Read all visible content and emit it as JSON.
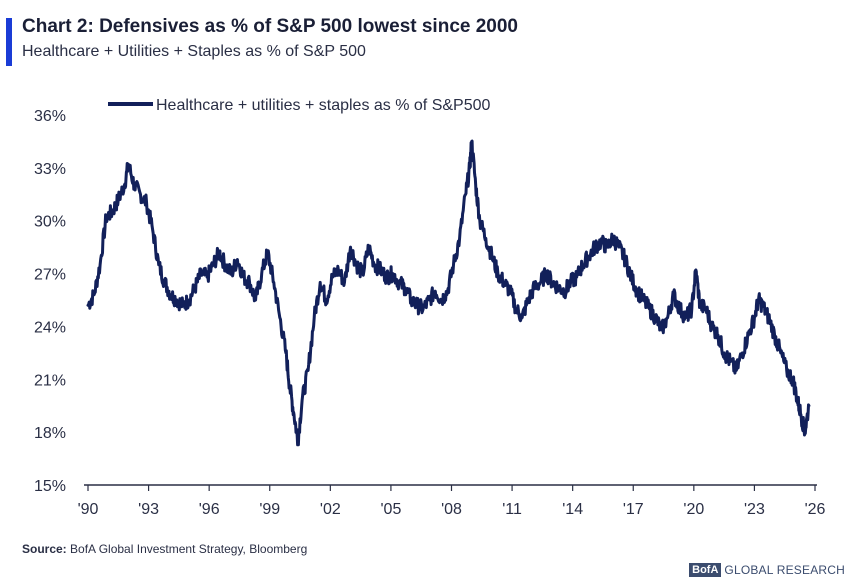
{
  "header": {
    "title": "Chart 2: Defensives as % of S&P 500 lowest since 2000",
    "subtitle": "Healthcare + Utilities + Staples as % of S&P 500"
  },
  "footer": {
    "source_label": "Source:",
    "source_text": " BofA Global Investment Strategy, Bloomberg",
    "brand_logo": "BofA",
    "brand_text": "GLOBAL RESEARCH"
  },
  "colors": {
    "series": "#12205a",
    "accent": "#1a3cd6",
    "axis": "#2a2f45"
  },
  "chart_data": {
    "type": "line",
    "title": "Chart 2: Defensives as % of S&P 500 lowest since 2000",
    "subtitle": "Healthcare + Utilities + Staples as % of S&P 500",
    "xlabel": "",
    "ylabel": "",
    "xlim": [
      1990,
      2026
    ],
    "ylim": [
      15,
      36
    ],
    "x_ticks": [
      {
        "value": 1990,
        "label": "'90"
      },
      {
        "value": 1993,
        "label": "'93"
      },
      {
        "value": 1996,
        "label": "'96"
      },
      {
        "value": 1999,
        "label": "'99"
      },
      {
        "value": 2002,
        "label": "'02"
      },
      {
        "value": 2005,
        "label": "'05"
      },
      {
        "value": 2008,
        "label": "'08"
      },
      {
        "value": 2011,
        "label": "'11"
      },
      {
        "value": 2014,
        "label": "'14"
      },
      {
        "value": 2017,
        "label": "'17"
      },
      {
        "value": 2020,
        "label": "'20"
      },
      {
        "value": 2023,
        "label": "'23"
      },
      {
        "value": 2026,
        "label": "'26"
      }
    ],
    "y_ticks": [
      {
        "value": 15,
        "label": "15%"
      },
      {
        "value": 18,
        "label": "18%"
      },
      {
        "value": 21,
        "label": "21%"
      },
      {
        "value": 24,
        "label": "24%"
      },
      {
        "value": 27,
        "label": "27%"
      },
      {
        "value": 30,
        "label": "30%"
      },
      {
        "value": 33,
        "label": "33%"
      },
      {
        "value": 36,
        "label": "36%"
      }
    ],
    "grid": false,
    "legend_position": "top",
    "series": [
      {
        "name": "Healthcare + utilities + staples as % of S&P500",
        "x": [
          1990.0,
          1990.3,
          1990.6,
          1990.9,
          1991.2,
          1991.5,
          1991.8,
          1992.0,
          1992.3,
          1992.6,
          1992.9,
          1993.2,
          1993.5,
          1993.8,
          1994.1,
          1994.4,
          1994.7,
          1995.0,
          1995.3,
          1995.6,
          1995.9,
          1996.2,
          1996.5,
          1996.8,
          1997.1,
          1997.4,
          1997.7,
          1998.0,
          1998.3,
          1998.6,
          1998.9,
          1999.2,
          1999.5,
          1999.8,
          2000.0,
          2000.2,
          2000.4,
          2000.6,
          2000.9,
          2001.2,
          2001.5,
          2001.8,
          2002.1,
          2002.4,
          2002.7,
          2003.0,
          2003.3,
          2003.6,
          2003.9,
          2004.2,
          2004.5,
          2004.8,
          2005.1,
          2005.4,
          2005.7,
          2006.0,
          2006.3,
          2006.6,
          2006.9,
          2007.2,
          2007.5,
          2007.8,
          2008.1,
          2008.4,
          2008.7,
          2008.9,
          2009.0,
          2009.2,
          2009.4,
          2009.7,
          2010.0,
          2010.3,
          2010.6,
          2010.9,
          2011.2,
          2011.5,
          2011.8,
          2012.1,
          2012.4,
          2012.7,
          2013.0,
          2013.3,
          2013.6,
          2013.9,
          2014.2,
          2014.5,
          2014.8,
          2015.1,
          2015.4,
          2015.7,
          2016.0,
          2016.3,
          2016.6,
          2016.9,
          2017.2,
          2017.5,
          2017.8,
          2018.1,
          2018.4,
          2018.7,
          2019.0,
          2019.3,
          2019.6,
          2019.9,
          2020.1,
          2020.3,
          2020.6,
          2020.9,
          2021.2,
          2021.5,
          2021.8,
          2022.1,
          2022.4,
          2022.7,
          2023.0,
          2023.2,
          2023.4,
          2023.7,
          2024.0,
          2024.3,
          2024.6,
          2024.9,
          2025.1,
          2025.3,
          2025.5,
          2025.7
        ],
        "values": [
          25.2,
          25.8,
          27.5,
          30.2,
          30.5,
          31.2,
          32.0,
          33.2,
          32.0,
          31.5,
          31.0,
          29.5,
          27.5,
          26.5,
          25.8,
          25.5,
          25.2,
          25.5,
          26.2,
          27.0,
          26.8,
          27.5,
          28.2,
          27.5,
          27.0,
          27.8,
          26.8,
          26.5,
          25.5,
          27.0,
          28.2,
          26.5,
          24.5,
          22.5,
          20.5,
          19.0,
          17.5,
          19.8,
          21.5,
          24.5,
          26.5,
          25.5,
          26.8,
          27.2,
          26.5,
          28.5,
          27.5,
          27.0,
          28.5,
          27.5,
          27.2,
          26.8,
          27.0,
          26.5,
          26.2,
          25.5,
          25.2,
          25.0,
          25.5,
          26.0,
          25.5,
          26.0,
          27.5,
          29.0,
          31.5,
          33.0,
          34.5,
          32.0,
          30.0,
          29.0,
          28.0,
          27.0,
          26.5,
          26.0,
          25.0,
          24.5,
          25.5,
          26.2,
          26.5,
          27.0,
          26.5,
          26.2,
          26.0,
          26.5,
          26.8,
          27.5,
          28.0,
          28.5,
          28.8,
          28.5,
          29.0,
          28.5,
          27.8,
          26.8,
          26.0,
          25.5,
          25.0,
          24.5,
          23.8,
          24.5,
          25.8,
          25.0,
          24.5,
          25.0,
          27.2,
          25.2,
          25.0,
          24.0,
          23.5,
          22.5,
          22.0,
          21.5,
          22.5,
          23.5,
          24.5,
          25.5,
          25.2,
          24.5,
          23.5,
          22.5,
          21.5,
          21.0,
          20.0,
          19.0,
          18.0,
          19.5
        ]
      }
    ]
  }
}
